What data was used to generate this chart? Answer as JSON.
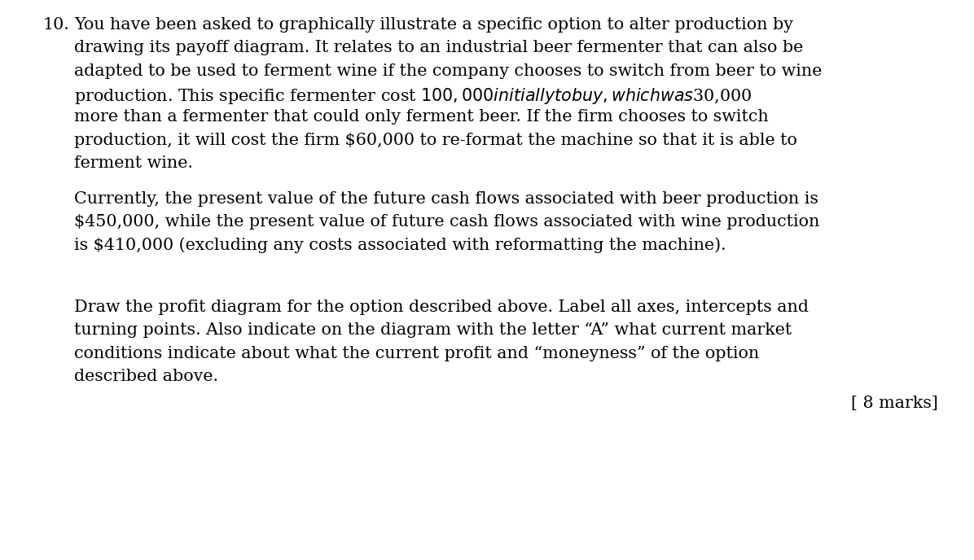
{
  "background_color": "#ffffff",
  "text_color": "#000000",
  "font_family": "DejaVu Serif",
  "font_size": 15.5,
  "marks_font_size": 15.5,
  "figsize": [
    12.46,
    7.17
  ],
  "dpi": 96,
  "question_number": "10.",
  "p1_line1": "You have been asked to graphically illustrate a specific option to alter production by",
  "p1_line2": "drawing its payoff diagram. It relates to an industrial beer fermenter that can also be",
  "p1_line3": "adapted to be used to ferment wine if the company chooses to switch from beer to wine",
  "p1_line4": "production. This specific fermenter cost $100,000 initially to buy, which was $30,000",
  "p1_line5": "more than a fermenter that could only ferment beer. If the firm chooses to switch",
  "p1_line6": "production, it will cost the firm $60,000 to re-format the machine so that it is able to",
  "p1_line7": "ferment wine.",
  "p2_line1": "Currently, the present value of the future cash flows associated with beer production is",
  "p2_line2": "$450,000, while the present value of future cash flows associated with wine production",
  "p2_line3": "is $410,000 (excluding any costs associated with reformatting the machine).",
  "p3_line1": "Draw the profit diagram for the option described above. Label all axes, intercepts and",
  "p3_line2": "turning points. Also indicate on the diagram with the letter “A” what current market",
  "p3_line3": "conditions indicate about what the current profit and “moneyness” of the option",
  "p3_line4": "described above.",
  "marks": "[ 8 marks]"
}
